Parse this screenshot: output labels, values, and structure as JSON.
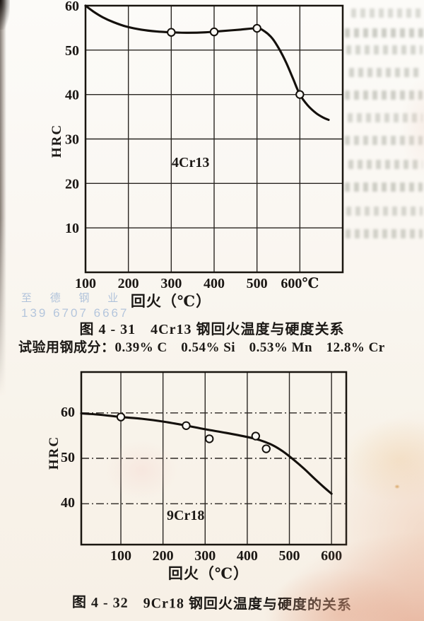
{
  "watermark": {
    "line1": "至 德 钢 业",
    "line2": "139 6707 6667"
  },
  "figure1": {
    "caption": "图 4 - 31　4Cr13 钢回火温度与硬度关系",
    "composition": "试验用钢成分：0.39% C　0.54% Si　0.53% Mn　12.8% Cr"
  },
  "figure2": {
    "caption": "图 4 - 32　9Cr18 钢回火温度与硬度的关系"
  },
  "chart_data": [
    {
      "type": "line",
      "title": "图 4-31 4Cr13 钢回火温度与硬度关系",
      "steel": "4Cr13",
      "xlabel": "回火（℃）",
      "ylabel": "HRC",
      "xlim": [
        100,
        700
      ],
      "ylim": [
        0,
        60
      ],
      "x_ticks": [
        100,
        200,
        300,
        400,
        500,
        600
      ],
      "x_tick_labels": [
        "100",
        "200",
        "300",
        "400",
        "500",
        "600℃"
      ],
      "y_ticks": [
        60,
        50,
        40,
        30,
        20,
        10
      ],
      "y_tick_labels": [
        "60",
        "50",
        "40",
        "30",
        "20",
        "10"
      ],
      "x_gridlines": [
        200,
        300,
        400,
        500,
        600
      ],
      "y_gridlines": [
        50,
        40,
        30,
        20,
        10
      ],
      "grid": "solid",
      "curve": [
        [
          100,
          60
        ],
        [
          118,
          58.7
        ],
        [
          140,
          57.4
        ],
        [
          165,
          56.3
        ],
        [
          195,
          55.3
        ],
        [
          230,
          54.6
        ],
        [
          265,
          54.2
        ],
        [
          300,
          54.0
        ],
        [
          340,
          53.9
        ],
        [
          380,
          54.0
        ],
        [
          420,
          54.3
        ],
        [
          460,
          54.6
        ],
        [
          500,
          54.9
        ],
        [
          518,
          54.2
        ],
        [
          536,
          52.6
        ],
        [
          552,
          50.2
        ],
        [
          568,
          47.2
        ],
        [
          584,
          43.6
        ],
        [
          600,
          40
        ],
        [
          618,
          37.6
        ],
        [
          638,
          35.8
        ],
        [
          655,
          34.8
        ],
        [
          667,
          34.3
        ]
      ],
      "markers": [
        [
          300,
          54.0
        ],
        [
          400,
          54.1
        ],
        [
          500,
          54.9
        ],
        [
          600,
          40
        ]
      ]
    },
    {
      "type": "line",
      "title": "图 4-32 9Cr18 钢回火温度与硬度的关系",
      "steel": "9Cr18",
      "xlabel": "回火（℃）",
      "ylabel": "HRC",
      "xlim": [
        6,
        635
      ],
      "ylim": [
        31,
        69
      ],
      "x_ticks": [
        100,
        200,
        300,
        400,
        500,
        600
      ],
      "x_tick_labels": [
        "100",
        "200",
        "300",
        "400",
        "500",
        "600"
      ],
      "y_ticks": [
        60,
        50,
        40
      ],
      "y_tick_labels": [
        "60",
        "50",
        "40"
      ],
      "x_gridlines": [
        100,
        200,
        300,
        400,
        500,
        600
      ],
      "y_gridlines": [
        60,
        50,
        40
      ],
      "grid": "h-dashdot",
      "curve": [
        [
          6,
          59.9
        ],
        [
          50,
          59.6
        ],
        [
          100,
          59.1
        ],
        [
          150,
          58.7
        ],
        [
          200,
          58.1
        ],
        [
          250,
          57.3
        ],
        [
          300,
          56.4
        ],
        [
          350,
          55.6
        ],
        [
          400,
          54.7
        ],
        [
          430,
          54.0
        ],
        [
          460,
          52.9
        ],
        [
          485,
          51.5
        ],
        [
          510,
          49.7
        ],
        [
          535,
          47.7
        ],
        [
          560,
          45.5
        ],
        [
          580,
          43.8
        ],
        [
          600,
          42.2
        ]
      ],
      "markers": [
        [
          100,
          59.1
        ],
        [
          255,
          57.2
        ],
        [
          310,
          54.3
        ],
        [
          420,
          54.9
        ],
        [
          445,
          52.1
        ]
      ]
    }
  ]
}
